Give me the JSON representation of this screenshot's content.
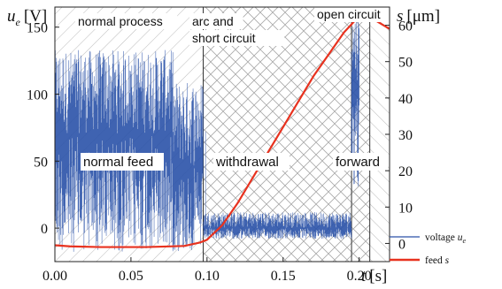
{
  "chart_data": {
    "type": "line",
    "title": "",
    "x": {
      "label_var": "t",
      "label_unit": "[s]",
      "lim": [
        0.0,
        0.22
      ],
      "ticks": [
        0.0,
        0.05,
        0.1,
        0.15,
        0.2
      ],
      "tick_labels": [
        "0.00",
        "0.05",
        "0.10",
        "0.15",
        "0.20"
      ]
    },
    "y_left": {
      "label_var": "u",
      "label_sub": "e",
      "label_unit": "[V]",
      "lim": [
        -25,
        165
      ],
      "ticks": [
        0,
        50,
        100,
        150
      ],
      "tick_labels": [
        "0",
        "50",
        "100",
        "150"
      ]
    },
    "y_right": {
      "label_var": "s",
      "label_unit": "[μm]",
      "lim": [
        -5,
        65
      ],
      "ticks": [
        0,
        10,
        20,
        30,
        40,
        50,
        60
      ],
      "tick_labels": [
        "0",
        "10",
        "20",
        "30",
        "40",
        "50",
        "60"
      ]
    },
    "regions": [
      {
        "x_from": 0.0,
        "x_to": 0.0975,
        "hatch": "diagonal",
        "top_label_lines": [
          "normal process"
        ],
        "mid_label": "normal feed"
      },
      {
        "x_from": 0.0975,
        "x_to": 0.195,
        "hatch": "crosshatch",
        "top_label_lines": [
          "arc and",
          "short circuit"
        ],
        "mid_label": "withdrawal"
      },
      {
        "x_from": 0.195,
        "x_to": 0.207,
        "hatch": "crosshatch",
        "top_label_lines": [
          "open circuit"
        ],
        "mid_label": "forward"
      },
      {
        "x_from": 0.207,
        "x_to": 0.22,
        "hatch": "anti-diagonal",
        "top_label_lines": [],
        "mid_label": ""
      }
    ],
    "series": [
      {
        "name": "voltage",
        "name_sub": "e",
        "name_prefix": "voltage ",
        "color": "#2a52a8",
        "axis": "left",
        "style": "noisy signal",
        "segments": [
          {
            "x_from": 0.0,
            "x_to": 0.078,
            "mean": 70,
            "min": -18,
            "max": 133
          },
          {
            "x_from": 0.078,
            "x_to": 0.0975,
            "mean": 45,
            "min": -18,
            "max": 110
          },
          {
            "x_from": 0.0975,
            "x_to": 0.195,
            "mean": 0,
            "min": -8,
            "max": 12
          },
          {
            "x_from": 0.195,
            "x_to": 0.2,
            "mean": 110,
            "min": 30,
            "max": 160
          },
          {
            "x_from": 0.2,
            "x_to": 0.22,
            "mean": 158,
            "min": 156,
            "max": 160
          }
        ],
        "spikes": [
          {
            "x": 0.099,
            "y": 72
          }
        ]
      },
      {
        "name": "feed",
        "name_sub": "",
        "name_prefix": "feed ",
        "var": "s",
        "color": "#e8321f",
        "axis": "right",
        "points": [
          [
            0.0,
            -0.5
          ],
          [
            0.01,
            -0.8
          ],
          [
            0.03,
            -1.0
          ],
          [
            0.06,
            -1.0
          ],
          [
            0.085,
            -0.7
          ],
          [
            0.095,
            0.2
          ],
          [
            0.1,
            1.0
          ],
          [
            0.11,
            5.0
          ],
          [
            0.12,
            11.0
          ],
          [
            0.13,
            18.0
          ],
          [
            0.14,
            25.0
          ],
          [
            0.15,
            32.0
          ],
          [
            0.16,
            39.0
          ],
          [
            0.17,
            46.0
          ],
          [
            0.18,
            52.0
          ],
          [
            0.19,
            58.0
          ],
          [
            0.2,
            62.5
          ],
          [
            0.203,
            63.0
          ],
          [
            0.207,
            62.5
          ],
          [
            0.212,
            61.0
          ],
          [
            0.22,
            59.0
          ]
        ]
      }
    ],
    "legend": {
      "placement": "bottom-right"
    }
  }
}
